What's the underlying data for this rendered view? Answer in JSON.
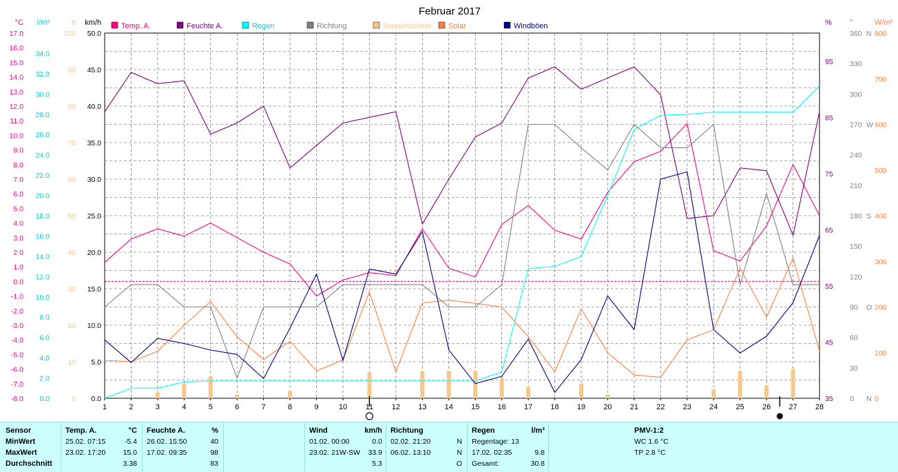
{
  "chart_data": {
    "type": "line",
    "title": "Februar 2017",
    "x": [
      1,
      2,
      3,
      4,
      5,
      6,
      7,
      8,
      9,
      10,
      11,
      12,
      13,
      14,
      15,
      16,
      17,
      18,
      19,
      20,
      21,
      22,
      23,
      24,
      25,
      26,
      27,
      28
    ],
    "xticks": [
      "1",
      "2",
      "3",
      "4",
      "5",
      "6",
      "7",
      "8",
      "9",
      "10",
      "11",
      "12",
      "13",
      "14",
      "15",
      "16",
      "17",
      "18",
      "19",
      "20",
      "21",
      "22",
      "23",
      "24",
      "25",
      "26",
      "27",
      "28"
    ],
    "axes": {
      "temp": {
        "unit": "°C",
        "color": "#ff0080",
        "min": -8,
        "max": 17,
        "ticks": [
          "-8.0",
          "-7.0",
          "-6.0",
          "-5.0",
          "-4.0",
          "-3.0",
          "-2.0",
          "-1.0",
          "0.0",
          "1.0",
          "2.0",
          "3.0",
          "4.0",
          "5.0",
          "6.0",
          "7.0",
          "8.0",
          "9.0",
          "10.0",
          "11.0",
          "12.0",
          "13.0",
          "14.0",
          "15.0",
          "16.0",
          "17.0"
        ]
      },
      "rain": {
        "unit": "l/m²",
        "color": "#00d4d4",
        "min": 0,
        "max": 36,
        "ticks": [
          "0.0",
          "2.0",
          "4.0",
          "6.0",
          "8.0",
          "10.0",
          "12.0",
          "14.0",
          "16.0",
          "18.0",
          "20.0",
          "22.0",
          "24.0",
          "26.0",
          "28.0",
          "30.0",
          "32.0",
          "34.0"
        ]
      },
      "sun": {
        "unit": "h",
        "color": "#f6c889",
        "min": 0,
        "max": 100,
        "ticks": [
          "0",
          "10",
          "20",
          "30",
          "40",
          "50",
          "60",
          "70",
          "80",
          "90",
          "100"
        ]
      },
      "wind": {
        "unit": "km/h",
        "color": "#000080",
        "min": 0,
        "max": 50,
        "ticks": [
          "0.0",
          "5.0",
          "10.0",
          "15.0",
          "20.0",
          "25.0",
          "30.0",
          "35.0",
          "40.0",
          "45.0",
          "50.0"
        ]
      },
      "humid": {
        "unit": "%",
        "color": "#800080",
        "min": 35,
        "max": 100,
        "ticks": [
          "35",
          "45",
          "55",
          "65",
          "75",
          "85",
          "95"
        ]
      },
      "dir": {
        "unit": "°",
        "color": "#808080",
        "min": 0,
        "max": 360,
        "ticks": [
          "0",
          "30",
          "60",
          "90",
          "120",
          "150",
          "180",
          "210",
          "240",
          "270",
          "300",
          "330",
          "360"
        ],
        "labels": {
          "0": "N",
          "90": "O",
          "180": "S",
          "270": "W",
          "360": "N"
        }
      },
      "solar": {
        "unit": "W/m²",
        "color": "#ff8040",
        "min": 0,
        "max": 800,
        "ticks": [
          "0",
          "100",
          "200",
          "300",
          "400",
          "500",
          "600",
          "700",
          "800"
        ]
      }
    },
    "legend": [
      {
        "name": "Temp. A.",
        "color": "#ff0080"
      },
      {
        "name": "Feuchte A.",
        "color": "#800080"
      },
      {
        "name": "Regen",
        "color": "#00ffff"
      },
      {
        "name": "Richtung",
        "color": "#808080"
      },
      {
        "name": "Sonnenschein",
        "color": "#f6c889"
      },
      {
        "name": "Solar",
        "color": "#ff8040"
      },
      {
        "name": "Windböen",
        "color": "#000080"
      }
    ],
    "series": [
      {
        "name": "Temp. A.",
        "axis": "temp",
        "color": "#ff0080",
        "values": [
          1.3,
          2.9,
          3.6,
          3.1,
          4.0,
          3.0,
          2.0,
          1.2,
          -1.0,
          0.1,
          0.6,
          0.4,
          3.6,
          0.9,
          0.3,
          3.9,
          5.2,
          3.5,
          2.9,
          6.1,
          8.2,
          8.9,
          10.8,
          2.1,
          1.4,
          3.8,
          8.0,
          4.5
        ]
      },
      {
        "name": "Feuchte A.",
        "axis": "humid",
        "color": "#800080",
        "values": [
          86,
          93,
          91,
          91.5,
          82,
          84,
          87,
          76,
          80,
          84,
          85,
          86,
          66,
          74,
          81.5,
          84,
          92,
          94,
          90,
          92,
          94,
          89,
          67,
          67.5,
          76,
          75.5,
          64,
          86
        ]
      },
      {
        "name": "Regen",
        "axis": "rain",
        "color": "#00ffff",
        "values": [
          0,
          1.0,
          1.0,
          1.6,
          1.7,
          1.7,
          1.7,
          1.7,
          1.7,
          1.7,
          1.7,
          1.7,
          1.7,
          1.7,
          1.7,
          2.6,
          12.8,
          13.0,
          14.0,
          20.0,
          26.5,
          27.9,
          28.0,
          28.2,
          28.2,
          28.2,
          28.2,
          30.8
        ]
      },
      {
        "name": "Richtung",
        "axis": "dir",
        "color": "#808080",
        "values": [
          90,
          112,
          112,
          90,
          90,
          20,
          90,
          90,
          90,
          112,
          112,
          112,
          112,
          90,
          90,
          112,
          270,
          270,
          247,
          225,
          270,
          247,
          247,
          270,
          112,
          202,
          112,
          112
        ]
      },
      {
        "name": "Sonnenschein",
        "axis": "sun",
        "color": "#f6c889",
        "values": [
          0,
          0,
          1.5,
          4,
          6,
          1,
          0,
          2,
          0,
          0,
          7,
          0,
          7.5,
          7.5,
          7.5,
          5.5,
          3,
          0,
          4,
          1,
          0,
          0,
          0,
          2.5,
          7.5,
          3.5,
          8,
          0
        ]
      },
      {
        "name": "Solar",
        "axis": "solar",
        "color": "#ff8040",
        "values": [
          83,
          80,
          103,
          160,
          212,
          135,
          85,
          125,
          60,
          84,
          233,
          58,
          209,
          215,
          208,
          200,
          135,
          58,
          196,
          100,
          51,
          46,
          128,
          150,
          285,
          178,
          307,
          103
        ]
      },
      {
        "name": "Windböen",
        "axis": "wind",
        "color": "#000080",
        "values": [
          8.0,
          4.9,
          8.2,
          7.5,
          6.6,
          6.0,
          2.7,
          9.6,
          17.0,
          5.2,
          17.7,
          17.0,
          22.8,
          6.6,
          2.0,
          3.0,
          8.1,
          0.8,
          5.3,
          14.0,
          9.4,
          30.0,
          31.0,
          9.4,
          6.2,
          8.5,
          13.1,
          22.3
        ]
      }
    ],
    "reference_lines": [
      {
        "axis": "temp",
        "value": 0,
        "style": "dashed"
      }
    ],
    "moon_markers": [
      {
        "day": 11,
        "symbol": "○"
      },
      {
        "day": 26.5,
        "symbol": "●"
      }
    ],
    "grid": true
  },
  "table": {
    "sensor": {
      "title": "Sensor",
      "rows": [
        "MinWert",
        "MaxWert",
        "Durchschnitt"
      ]
    },
    "temp": {
      "title": "Temp. A.",
      "unit": "°C",
      "min_time": "25.02.  07:15",
      "min_val": "-5.4",
      "max_time": "23.02.  17:20",
      "max_val": "15.0",
      "avg": "3.38"
    },
    "humid": {
      "title": "Feuchte A.",
      "unit": "%",
      "min_time": "26.02.  15:50",
      "min_val": "40",
      "max_time": "17.02.  09:35",
      "max_val": "98",
      "avg": "83"
    },
    "wind": {
      "title": "Wind",
      "unit": "km/h",
      "min_time": "01.02.  00:00",
      "min_val": "0.0",
      "max_time": "23.02.  21W-SW",
      "max_val": "33.9",
      "avg": "5.3"
    },
    "dir": {
      "title": "Richtung",
      "min_time": "02.02.  21:20",
      "min_val": "N",
      "max_time": "06.02.  13:10",
      "max_val": "N",
      "avg": "O"
    },
    "rain": {
      "title": "Regen",
      "unit": "l/m²",
      "days": "Regentage: 13",
      "max_time": "17.02.  02:35",
      "max_val": "9.8",
      "total_label": "Gesamt:",
      "total_val": "30.8"
    },
    "pmv": {
      "title": "PMV-1:2",
      "wc": "WC 1.6 °C",
      "tp": "TP 2.8 °C"
    }
  }
}
